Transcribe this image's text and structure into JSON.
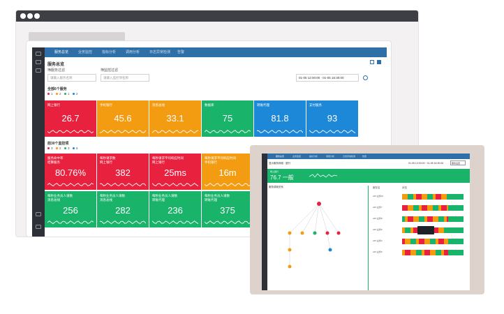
{
  "desktop": {
    "nav": [
      "服务总览",
      "业务监控",
      "指标分析",
      "调用分析",
      "日志异常检测",
      "告警"
    ],
    "nav_right": "",
    "page_title": "服务总览",
    "filters": [
      {
        "label": "筛服务过滤",
        "placeholder": "请输入服务名称"
      },
      {
        "label": "筛监控过滤",
        "placeholder": "请输入监控项名称"
      }
    ],
    "time_range": "01-05 12:00:00  ·  01-05 16:30:00",
    "section1": {
      "title": "全部6个服务",
      "legend": [
        {
          "count": "1",
          "color": "#e8213f"
        },
        {
          "count": "2",
          "color": "#f39c12"
        },
        {
          "count": "1",
          "color": "#19b36a"
        },
        {
          "count": "2",
          "color": "#1e88d8"
        }
      ],
      "tiles": [
        {
          "label": "网上银行",
          "value": "26.7",
          "color": "#e8213f"
        },
        {
          "label": "手机银行",
          "value": "45.6",
          "color": "#f39c12"
        },
        {
          "label": "消息总线",
          "value": "33.1",
          "color": "#f39c12"
        },
        {
          "label": "数据库",
          "value": "75",
          "color": "#19b36a"
        },
        {
          "label": "转账代理",
          "value": "81.8",
          "color": "#1e88d8"
        },
        {
          "label": "支付服务",
          "value": "93",
          "color": "#1e88d8"
        }
      ]
    },
    "section2": {
      "title": "前30个监控项",
      "legend": [
        {
          "count": "3",
          "color": "#e8213f"
        },
        {
          "count": "2",
          "color": "#f39c12"
        },
        {
          "count": "3",
          "color": "#19b36a"
        },
        {
          "count": "6",
          "color": "#1e88d8"
        }
      ],
      "tiles_row1": [
        {
          "label1": "服务命中率",
          "label2": "结算服务",
          "value": "80.76%",
          "color": "#e8213f"
        },
        {
          "label1": "每秒请求数",
          "label2": "网上银行",
          "value": "382",
          "color": "#e8213f"
        },
        {
          "label1": "每秒请求平均响应时间",
          "label2": "网上银行",
          "value": "25ms",
          "color": "#e8213f"
        },
        {
          "label1": "每秒请求平均响应时间",
          "label2": "手机银行",
          "value": "16m",
          "color": "#f39c12"
        }
      ],
      "tiles_row2": [
        {
          "label1": "每秒业务员人请数",
          "label2": "消息总线",
          "value": "256",
          "color": "#19b36a"
        },
        {
          "label1": "每秒业务员人请数",
          "label2": "消息总线",
          "value": "282",
          "color": "#19b36a"
        },
        {
          "label1": "每秒业务员人请数",
          "label2": "转账代理",
          "value": "236",
          "color": "#19b36a"
        },
        {
          "label1": "每秒业务员人请数",
          "label2": "转账代理",
          "value": "375",
          "color": "#19b36a"
        }
      ]
    }
  },
  "tablet": {
    "nav": [
      "服务总览",
      "业务监控",
      "指标分析",
      "调用分析",
      "日志异常检测",
      "告警"
    ],
    "subtitle": "显示服务网络 · 银行",
    "time_range": "01-05 12:00:00  ·  01-05 16:30:00",
    "button": "服务设置",
    "banner_label": "网上银行",
    "banner_value": "76.7 一般",
    "left_title": "服务调用关系",
    "right_headers": [
      "服务名",
      "状态"
    ],
    "rows": [
      "API-业务10",
      "API-业务7",
      "API-业务8",
      "API-业务9",
      "API-业务3",
      "API-业务5"
    ]
  }
}
